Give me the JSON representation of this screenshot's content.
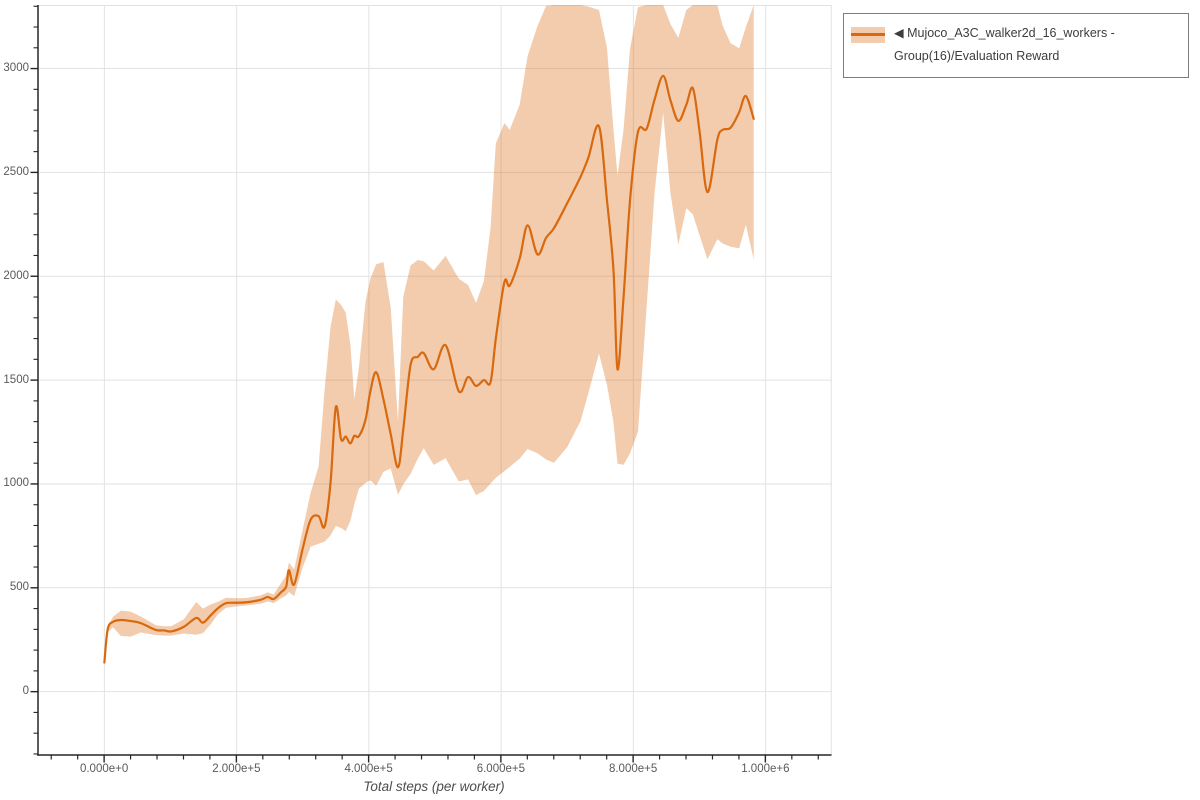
{
  "figure": {
    "background_color": "#ffffff",
    "grid_color": "#e2e2e2",
    "axis_color": "#262626",
    "tick_label_color": "#595959"
  },
  "legend": {
    "entries": [
      {
        "marker": "band-with-line-swatch",
        "label": "◀ Mujoco_A3C_walker2d_16_workers - Group(16)/Evaluation Reward"
      }
    ]
  },
  "chart_data": {
    "type": "line",
    "title": "",
    "xlabel": "Total steps (per worker)",
    "ylabel": "",
    "xlim": [
      -100000,
      1100000
    ],
    "ylim": [
      -305,
      3306
    ],
    "grid": true,
    "legend_position": "top-right-outside",
    "x_ticks": {
      "values": [
        0,
        200000,
        400000,
        600000,
        800000,
        1000000
      ],
      "labels": [
        "0.000e+0",
        "2.000e+5",
        "4.000e+5",
        "6.000e+5",
        "8.000e+5",
        "1.000e+6"
      ],
      "minor_step": 40000
    },
    "y_ticks": {
      "values": [
        0,
        500,
        1000,
        1500,
        2000,
        2500,
        3000
      ],
      "labels": [
        "0",
        "500",
        "1000",
        "1500",
        "2000",
        "2500",
        "3000"
      ],
      "minor_step": 100
    },
    "series": [
      {
        "name": "Mujoco_A3C_walker2d_16_workers - Group(16)/Evaluation Reward",
        "color": "#d8690e",
        "band_color": "rgba(216,105,14,0.34)",
        "x": [
          0,
          5000,
          13000,
          25000,
          40000,
          55000,
          78000,
          90000,
          101000,
          120000,
          139000,
          149000,
          161000,
          172000,
          184000,
          202000,
          217000,
          237000,
          247000,
          256000,
          267000,
          275000,
          279000,
          287000,
          300000,
          312000,
          324000,
          333000,
          342000,
          350000,
          358000,
          365000,
          372000,
          378000,
          385000,
          395000,
          402000,
          411000,
          422000,
          433000,
          444000,
          452000,
          463000,
          474000,
          483000,
          498000,
          516000,
          536000,
          550000,
          562000,
          574000,
          584000,
          592000,
          605000,
          613000,
          628000,
          640000,
          655000,
          668000,
          680000,
          700000,
          720000,
          732000,
          748000,
          760000,
          770000,
          776000,
          785000,
          795000,
          807000,
          820000,
          832000,
          845000,
          856000,
          868000,
          880000,
          890000,
          900000,
          912000,
          927000,
          935000,
          947000,
          960000,
          970000,
          982000
        ],
        "mean": [
          140,
          300,
          336,
          345,
          340,
          330,
          297,
          295,
          290,
          312,
          355,
          332,
          368,
          402,
          426,
          428,
          431,
          443,
          456,
          446,
          478,
          506,
          585,
          516,
          690,
          828,
          845,
          795,
          1005,
          1370,
          1215,
          1228,
          1195,
          1232,
          1230,
          1310,
          1442,
          1538,
          1408,
          1240,
          1080,
          1262,
          1572,
          1612,
          1630,
          1552,
          1668,
          1446,
          1515,
          1472,
          1500,
          1490,
          1700,
          1972,
          1955,
          2085,
          2245,
          2105,
          2185,
          2232,
          2352,
          2478,
          2572,
          2722,
          2368,
          2025,
          1552,
          1892,
          2368,
          2695,
          2710,
          2850,
          2965,
          2848,
          2748,
          2825,
          2905,
          2700,
          2405,
          2658,
          2705,
          2715,
          2790,
          2868,
          2758
        ],
        "lower": [
          138,
          286,
          310,
          268,
          265,
          285,
          272,
          270,
          270,
          280,
          274,
          282,
          325,
          374,
          404,
          411,
          416,
          424,
          434,
          426,
          450,
          463,
          480,
          460,
          600,
          698,
          712,
          722,
          752,
          798,
          788,
          772,
          822,
          902,
          978,
          1005,
          1018,
          992,
          1058,
          1075,
          948,
          998,
          1048,
          1122,
          1172,
          1092,
          1124,
          1012,
          1022,
          946,
          966,
          1002,
          1030,
          1062,
          1082,
          1122,
          1168,
          1148,
          1118,
          1102,
          1178,
          1302,
          1438,
          1628,
          1478,
          1295,
          1098,
          1092,
          1148,
          1252,
          1850,
          2400,
          2788,
          2402,
          2152,
          2328,
          2298,
          2198,
          2082,
          2178,
          2158,
          2142,
          2135,
          2248,
          2082
        ],
        "upper": [
          145,
          315,
          360,
          390,
          385,
          362,
          320,
          315,
          315,
          348,
          432,
          400,
          420,
          433,
          452,
          450,
          452,
          464,
          478,
          468,
          522,
          558,
          622,
          588,
          782,
          958,
          1085,
          1452,
          1755,
          1888,
          1862,
          1825,
          1672,
          1408,
          1562,
          1878,
          1985,
          2058,
          2068,
          1850,
          1302,
          1902,
          2052,
          2078,
          2072,
          2028,
          2098,
          1988,
          1958,
          1872,
          1978,
          2232,
          2640,
          2738,
          2705,
          2825,
          3060,
          3205,
          3302,
          3306,
          3306,
          3306,
          3298,
          3282,
          3102,
          2702,
          2485,
          2702,
          3098,
          3295,
          3306,
          3306,
          3306,
          3215,
          3148,
          3282,
          3306,
          3306,
          3306,
          3306,
          3206,
          3122,
          3098,
          3198,
          3306
        ]
      }
    ]
  }
}
